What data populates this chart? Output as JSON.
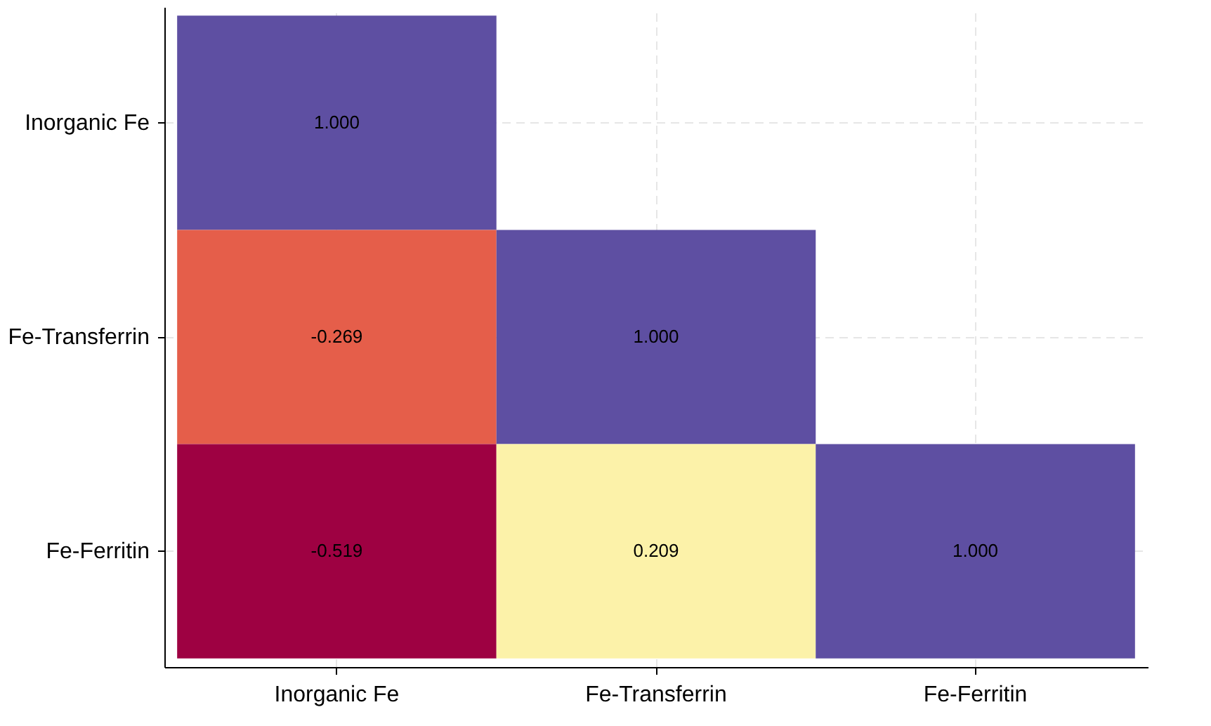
{
  "chart_data": {
    "type": "heatmap",
    "categories": [
      "Inorganic Fe",
      "Fe-Transferrin",
      "Fe-Ferritin"
    ],
    "y_categories": [
      "Inorganic Fe",
      "Fe-Transferrin",
      "Fe-Ferritin"
    ],
    "cells": [
      [
        1.0,
        null,
        null
      ],
      [
        -0.269,
        1.0,
        null
      ],
      [
        -0.519,
        0.209,
        1.0
      ]
    ],
    "cell_labels": [
      [
        "1.000",
        null,
        null
      ],
      [
        "-0.269",
        "1.000",
        null
      ],
      [
        "-0.519",
        "0.209",
        "1.000"
      ]
    ],
    "grid": true
  }
}
